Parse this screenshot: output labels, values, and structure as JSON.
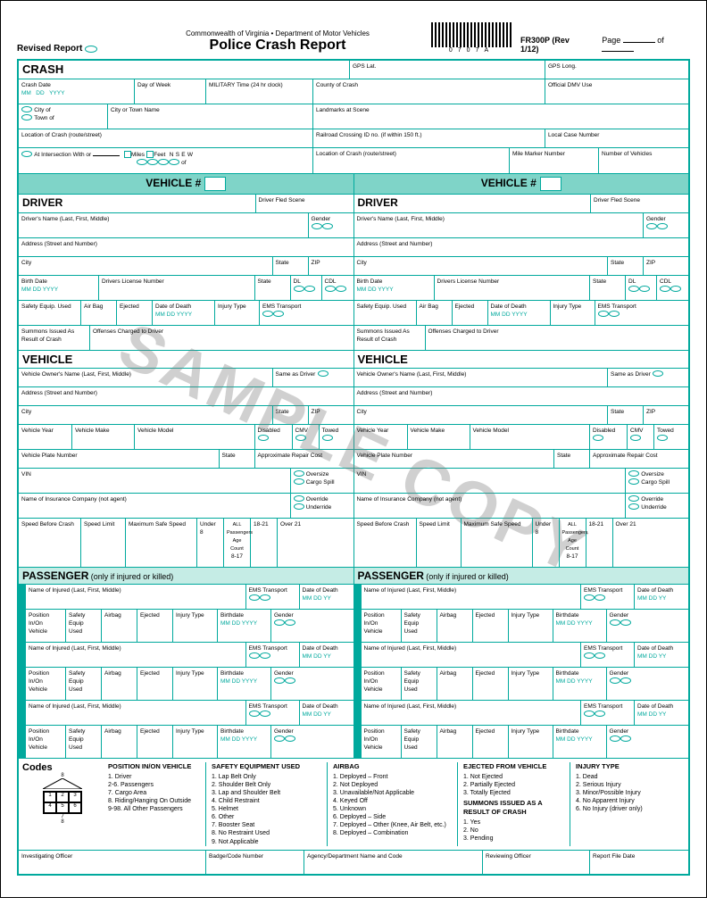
{
  "header": {
    "revised": "Revised  Report",
    "dept": "Commonwealth of Virginia • Department of Motor Vehicles",
    "title": "Police  Crash  Report",
    "barcode_text": "0707A",
    "form_id": "FR300P (Rev 1/12)",
    "page": "Page",
    "of": "of"
  },
  "crash": {
    "title": "CRASH",
    "crash_date": "Crash Date",
    "mm": "MM",
    "dd": "DD",
    "yyyy": "YYYY",
    "day_of_week": "Day of Week",
    "mil_time": "MILITARY Time (24 hr clock)",
    "gps_lat": "GPS Lat.",
    "gps_long": "GPS Long.",
    "county": "County of Crash",
    "dmv": "Official DMV Use",
    "city_of": "City of",
    "town_of": "Town of",
    "city_town_name": "City or Town Name",
    "landmarks": "Landmarks at Scene",
    "location": "Location of Crash (route/street)",
    "railroad": "Railroad Crossing ID no. (if within 150 ft.)",
    "local_case": "Local Case Number",
    "intersection": "At Intersection With or",
    "miles": "Miles",
    "feet": "Feet",
    "n": "N",
    "s": "S",
    "e": "E",
    "w": "W",
    "of_dir": "of",
    "location2": "Location of Crash (route/street)",
    "mile_marker": "Mile Marker Number",
    "num_vehicles": "Number of Vehicles"
  },
  "vehicle_header": "VEHICLE #",
  "driver": {
    "title": "DRIVER",
    "fled": "Driver Fled Scene",
    "name": "Driver's Name (Last, First, Middle)",
    "gender": "Gender",
    "address": "Address (Street and Number)",
    "city": "City",
    "state": "State",
    "zip": "ZIP",
    "birth": "Birth Date",
    "dl_num": "Drivers License Number",
    "dl": "DL",
    "cdl": "CDL",
    "safety": "Safety Equip. Used",
    "airbag": "Air Bag",
    "ejected": "Ejected",
    "dod": "Date of Death",
    "injury": "Injury Type",
    "ems": "EMS Transport",
    "summons": "Summons Issued As Result of Crash",
    "offenses": "Offenses Charged to Driver"
  },
  "vehicle": {
    "title": "VEHICLE",
    "owner": "Vehicle Owner's Name  (Last, First, Middle)",
    "same": "Same as Driver",
    "address": "Address (Street and Number)",
    "city": "City",
    "state": "State",
    "zip": "ZIP",
    "year": "Vehicle Year",
    "make": "Vehicle Make",
    "model": "Vehicle Model",
    "disabled": "Disabled",
    "cmv": "CMV",
    "towed": "Towed",
    "plate": "Vehicle Plate Number",
    "repair": "Approximate Repair Cost",
    "vin": "VIN",
    "oversize": "Oversize",
    "cargo": "Cargo Spill",
    "override": "Override",
    "underride": "Underride",
    "insurance": "Name of Insurance Company (not agent)",
    "speed_before": "Speed Before Crash",
    "speed_limit": "Speed Limit",
    "max_speed": "Maximum Safe Speed",
    "under8": "Under 8",
    "8_17": "8-17",
    "18_21": "18-21",
    "over21": "Over 21",
    "all_pass": "ALL Passengers Age Count"
  },
  "passenger": {
    "title": "PASSENGER",
    "sub": "(only if injured or killed)",
    "name": "Name of Injured  (Last, First, Middle)",
    "ems": "EMS Transport",
    "dod": "Date of Death",
    "pos": "Position In/On Vehicle",
    "safety": "Safety Equip Used",
    "airbag": "Airbag",
    "ejected": "Ejected",
    "injury": "Injury Type",
    "birthdate": "Birthdate",
    "gender": "Gender",
    "mm": "MM",
    "dd": "DD",
    "yy": "YY",
    "yyyy": "YYYY"
  },
  "codes": {
    "title": "Codes",
    "pos_hdr": "POSITION IN/ON VEHICLE",
    "pos": [
      "1.     Driver",
      "2-6.  Passengers",
      "7.     Cargo Area",
      "8.     Riding/Hanging On Outside",
      "9-98. All Other Passengers"
    ],
    "safety_hdr": "SAFETY EQUIPMENT USED",
    "safety": [
      "1.  Lap Belt Only",
      "2.  Shoulder Belt Only",
      "3.  Lap and Shoulder Belt",
      "4.  Child Restraint",
      "5.  Helmet",
      "6.  Other",
      "7.  Booster Seat",
      "8.  No Restraint Used",
      "9.  Not Applicable"
    ],
    "airbag_hdr": "AIRBAG",
    "airbag": [
      "1.  Deployed – Front",
      "2.  Not Deployed",
      "3.  Unavailable/Not Applicable",
      "4.  Keyed Off",
      "5.  Unknown",
      "6.  Deployed – Side",
      "7.  Deployed – Other (Knee, Air Belt, etc.)",
      "8.  Deployed – Combination"
    ],
    "ejected_hdr": "EJECTED FROM VEHICLE",
    "ejected": [
      "1.  Not Ejected",
      "2.  Partially Ejected",
      "3.  Totally Ejected"
    ],
    "summons_hdr": "SUMMONS ISSUED AS A RESULT OF CRASH",
    "summons": [
      "1.  Yes",
      "2.  No",
      "3.  Pending"
    ],
    "injury_hdr": "INJURY TYPE",
    "injury": [
      "1.  Dead",
      "2.  Serious Injury",
      "3.  Minor/Possible Injury",
      "4.  No Apparent Injury",
      "6.  No Injury (driver only)"
    ],
    "grid": [
      "1",
      "2",
      "3",
      "4",
      "5",
      "6"
    ],
    "g7": "7",
    "g8t": "8",
    "g8b": "8"
  },
  "footer": {
    "officer": "Investigating Officer",
    "badge": "Badge/Code Number",
    "agency": "Agency/Department Name and Code",
    "reviewing": "Reviewing Officer",
    "filedate": "Report File Date"
  },
  "watermark": "SAMPLE COPY",
  "colors": {
    "teal": "#00a99d",
    "lightteal": "#c5ece5",
    "midteal": "#7fd4c8"
  }
}
